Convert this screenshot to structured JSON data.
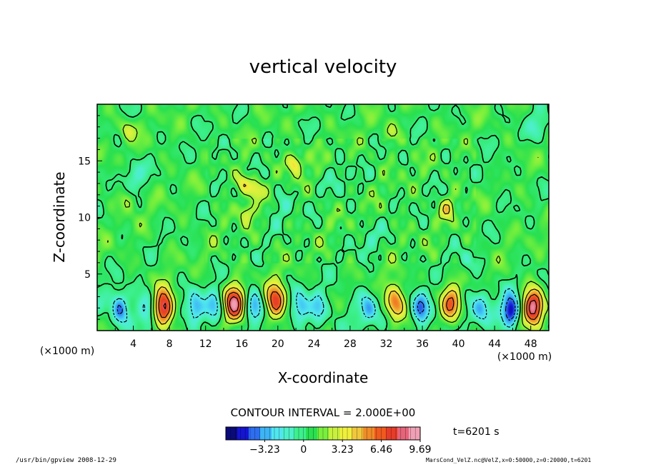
{
  "chart_data": {
    "type": "heatmap",
    "title": "vertical velocity",
    "xlabel": "X-coordinate",
    "ylabel": "Z-coordinate",
    "x_unit": "(×1000 m)",
    "y_unit": "(×1000 m)",
    "x_range": [
      0,
      50
    ],
    "y_range": [
      0,
      20
    ],
    "x_ticks": [
      4,
      8,
      12,
      16,
      20,
      24,
      28,
      32,
      36,
      40,
      44,
      48
    ],
    "y_ticks": [
      5,
      10,
      15
    ],
    "contour_interval_text": "CONTOUR INTERVAL = 2.000E+00",
    "time_text": "t=6201 s",
    "colorbar": {
      "min": -6.46,
      "max": 9.69,
      "tick_values": [
        -3.23,
        0,
        3.23,
        6.46,
        9.69
      ],
      "tick_labels": [
        "−3.23",
        "0",
        "3.23",
        "6.46",
        "9.69"
      ],
      "colors": [
        "#0a0a7a",
        "#1414d2",
        "#2d6ef0",
        "#3cb4f5",
        "#50e6f0",
        "#4cf0c8",
        "#3cf08c",
        "#28e050",
        "#78f03c",
        "#c8f03c",
        "#f0f03c",
        "#f0c83c",
        "#f08c28",
        "#f05a1e",
        "#e63c28",
        "#e6647a",
        "#f0a0b4"
      ]
    },
    "features": {
      "background_value": 0.6,
      "upward_cores": [
        {
          "x": 7.4,
          "z": 2.0,
          "w": 9.5
        },
        {
          "x": 15.2,
          "z": 2.3,
          "w": 9.0
        },
        {
          "x": 19.8,
          "z": 2.5,
          "w": 8.0
        },
        {
          "x": 33.0,
          "z": 2.5,
          "w": 6.5
        },
        {
          "x": 39.2,
          "z": 2.3,
          "w": 6.0
        },
        {
          "x": 48.3,
          "z": 2.0,
          "w": 9.69
        }
      ],
      "downward_cores": [
        {
          "x": 2.5,
          "z": 2.0,
          "w": -4.5
        },
        {
          "x": 5.5,
          "z": 1.8,
          "w": -3.0
        },
        {
          "x": 10.8,
          "z": 2.0,
          "w": -3.5
        },
        {
          "x": 13.0,
          "z": 2.0,
          "w": -3.0
        },
        {
          "x": 17.5,
          "z": 2.0,
          "w": -3.8
        },
        {
          "x": 22.5,
          "z": 2.0,
          "w": -3.5
        },
        {
          "x": 24.5,
          "z": 2.0,
          "w": -2.5
        },
        {
          "x": 30.0,
          "z": 2.0,
          "w": -3.2
        },
        {
          "x": 35.8,
          "z": 2.0,
          "w": -4.5
        },
        {
          "x": 42.5,
          "z": 2.0,
          "w": -3.0
        },
        {
          "x": 45.8,
          "z": 1.7,
          "w": -6.46
        }
      ],
      "upper_updrafts": [
        {
          "x": 3.4,
          "z": 17.7,
          "w": 2.5
        },
        {
          "x": 3.4,
          "z": 11.5,
          "w": 2.0
        },
        {
          "x": 21.8,
          "z": 14.8,
          "w": 4.0
        },
        {
          "x": 16.2,
          "z": 13.0,
          "w": 3.0
        },
        {
          "x": 17.5,
          "z": 12.5,
          "w": 3.2
        },
        {
          "x": 16.5,
          "z": 10.5,
          "w": 2.5
        },
        {
          "x": 38.8,
          "z": 10.8,
          "w": 3.0
        },
        {
          "x": 32.5,
          "z": 17.5,
          "w": 1.8
        }
      ],
      "upper_downdrafts": [
        {
          "x": 4.0,
          "z": 13.8,
          "w": -2.0
        },
        {
          "x": 20.5,
          "z": 11.0,
          "w": -1.5
        },
        {
          "x": 27.0,
          "z": 13.5,
          "w": -1.2
        },
        {
          "x": 30.0,
          "z": 8.0,
          "w": -1.3
        },
        {
          "x": 41.0,
          "z": 6.0,
          "w": -1.2
        },
        {
          "x": 49.0,
          "z": 18.0,
          "w": -1.8
        },
        {
          "x": 13.0,
          "z": 16.0,
          "w": -1.0
        },
        {
          "x": 44.0,
          "z": 14.0,
          "w": -1.0
        }
      ]
    }
  },
  "footer": {
    "left": "/usr/bin/gpview   2008-12-29",
    "right": "MarsCond_VelZ.nc@VelZ,x=0:50000,z=0:20000,t=6201"
  }
}
